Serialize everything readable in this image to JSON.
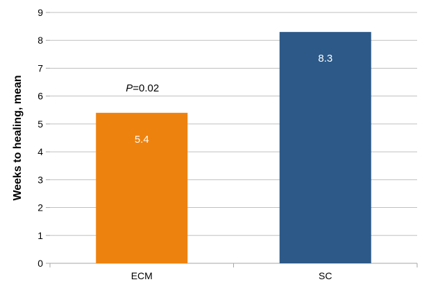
{
  "chart_data": {
    "type": "bar",
    "categories": [
      "ECM",
      "SC"
    ],
    "values": [
      5.4,
      8.3
    ],
    "data_labels": [
      "5.4",
      "8.3"
    ],
    "colors": [
      "#EE820E",
      "#2C5987"
    ],
    "title": "",
    "xlabel": "",
    "ylabel": "Weeks to healing, mean",
    "ylim": [
      0,
      9
    ],
    "yticks": [
      0,
      1,
      2,
      3,
      4,
      5,
      6,
      7,
      8,
      9
    ],
    "grid": true,
    "legend": "none",
    "annotation": {
      "p_symbol": "P",
      "p_value": "=0.02"
    }
  }
}
